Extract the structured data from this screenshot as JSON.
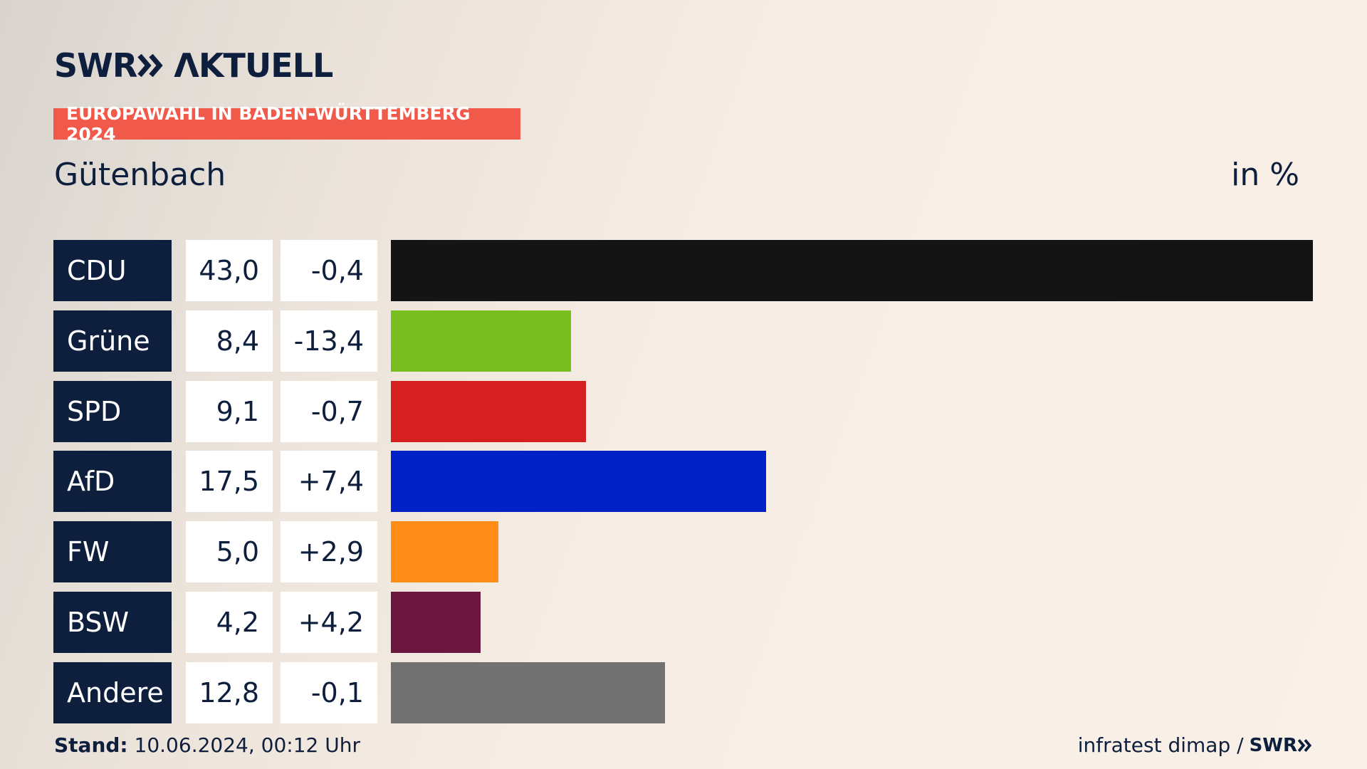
{
  "header": {
    "brand": "SWR",
    "product": "ΛKTUELL",
    "badge": "EUROPAWAHL IN BADEN-WÜRTTEMBERG 2024"
  },
  "chart_data": {
    "type": "bar",
    "orientation": "horizontal",
    "title": "Gütenbach",
    "unit": "in %",
    "categories": [
      "CDU",
      "Grüne",
      "SPD",
      "AfD",
      "FW",
      "BSW",
      "Andere"
    ],
    "values": [
      43.0,
      8.4,
      9.1,
      17.5,
      5.0,
      4.2,
      12.8
    ],
    "value_labels": [
      "43,0",
      "8,4",
      "9,1",
      "17,5",
      "5,0",
      "4,2",
      "12,8"
    ],
    "changes": [
      -0.4,
      -13.4,
      -0.7,
      7.4,
      2.9,
      4.2,
      -0.1
    ],
    "change_labels": [
      "-0,4",
      "-13,4",
      "-0,7",
      "+7,4",
      "+2,9",
      "+4,2",
      "-0,1"
    ],
    "colors": [
      "#141414",
      "#78be1e",
      "#d51f20",
      "#0021c6",
      "#ff8c17",
      "#6b1740",
      "#717171"
    ]
  },
  "footer": {
    "stand_label": "Stand:",
    "stand_value": "10.06.2024, 00:12 Uhr",
    "source": "infratest dimap /",
    "source_brand": "SWR"
  }
}
